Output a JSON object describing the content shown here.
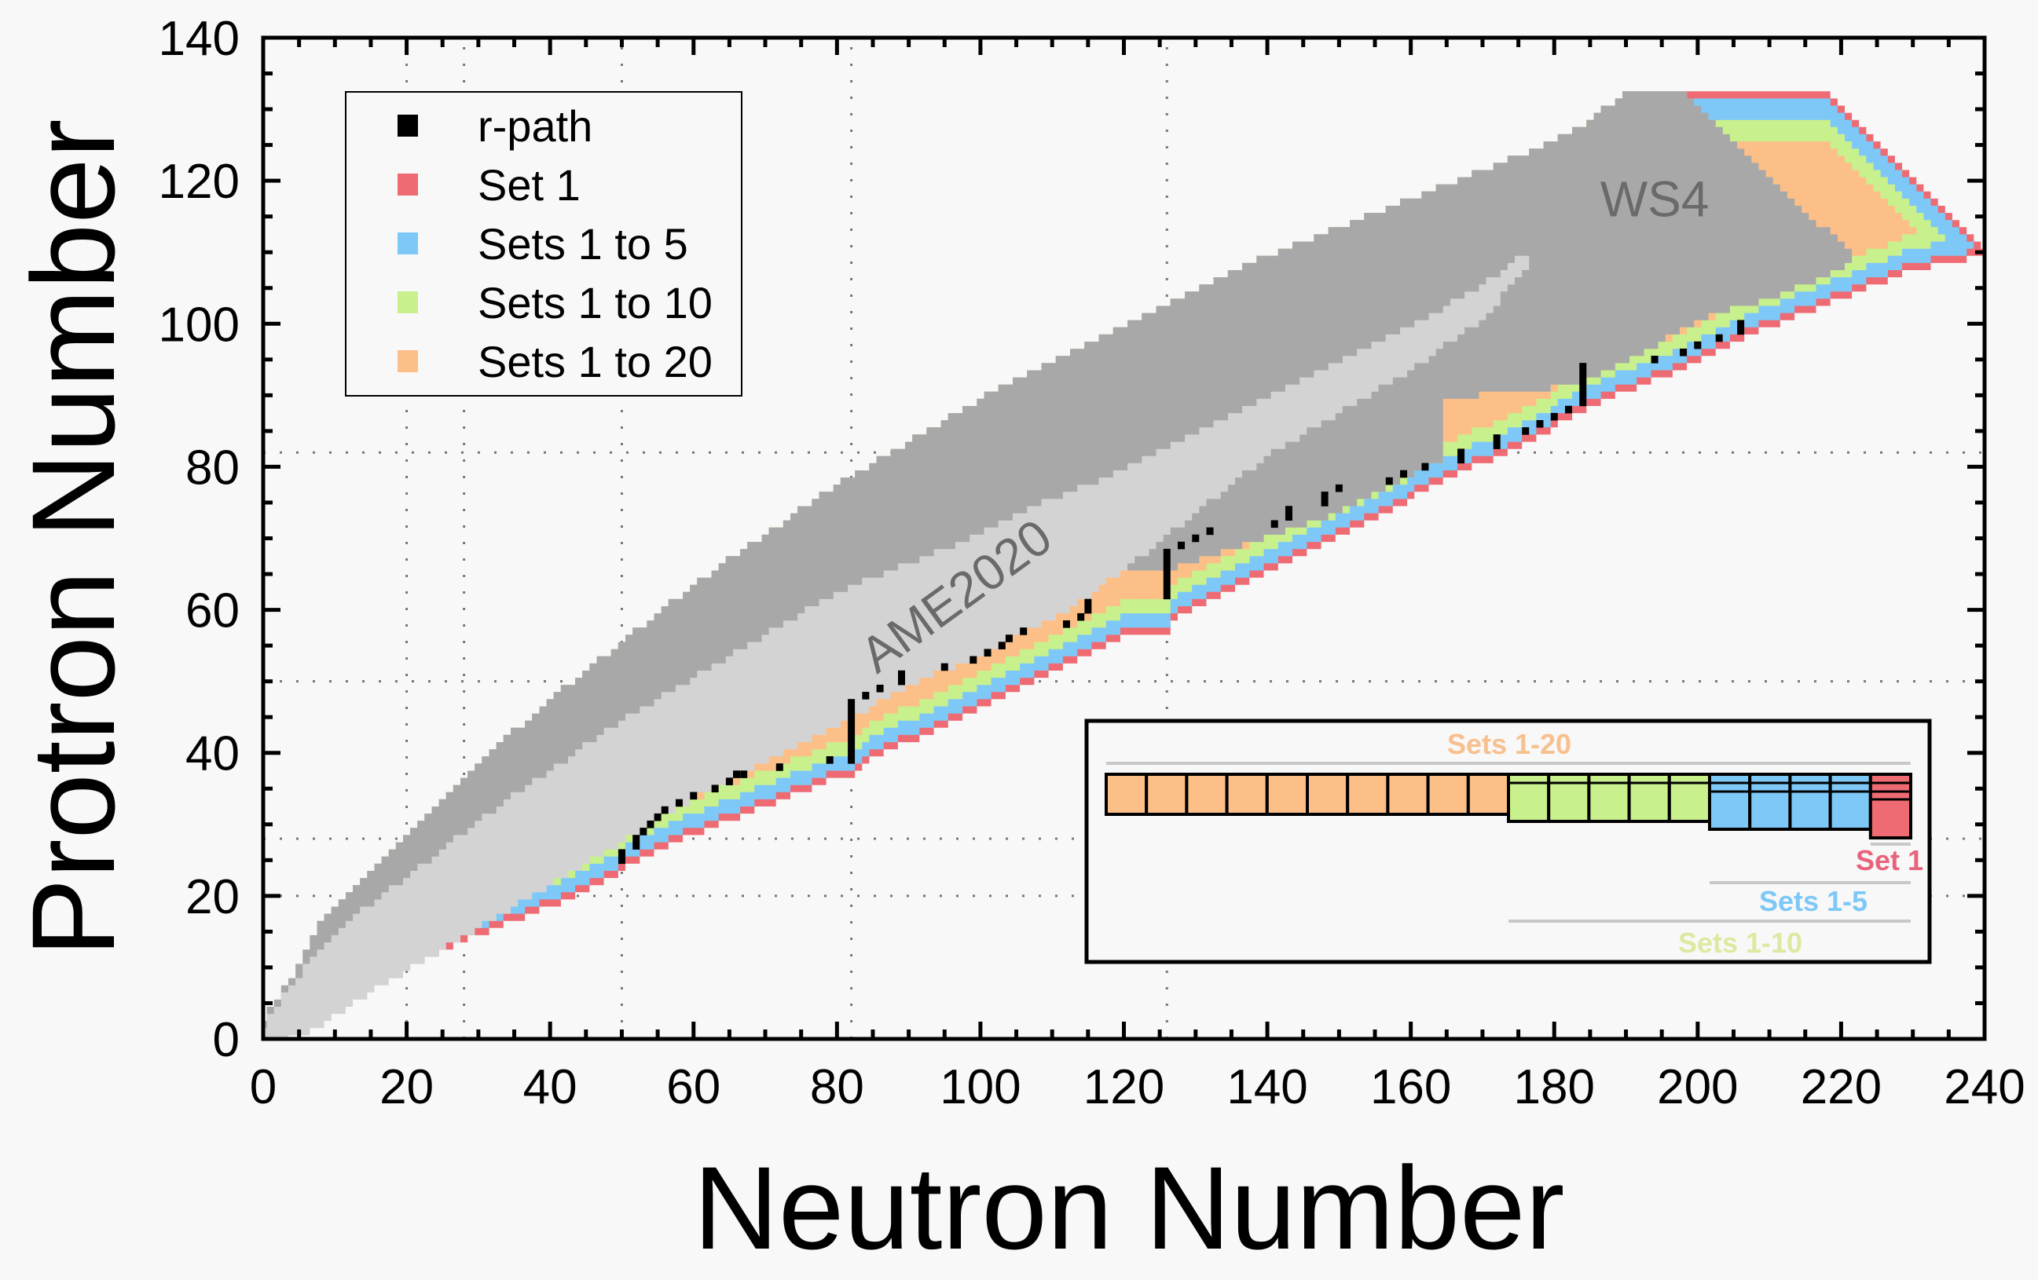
{
  "chart_data": {
    "type": "area",
    "title": "",
    "xlabel": "Neutron Number",
    "ylabel": "Protron Number",
    "xlim": [
      0,
      240
    ],
    "ylim": [
      0,
      140
    ],
    "xticks": [
      0,
      20,
      40,
      60,
      80,
      100,
      120,
      140,
      160,
      180,
      200,
      220,
      240
    ],
    "yticks": [
      0,
      20,
      40,
      60,
      80,
      100,
      120,
      140
    ],
    "x_minor_step": 5,
    "y_minor_step": 5,
    "magic_gridlines": {
      "neutron": [
        20,
        28,
        50,
        82,
        126
      ],
      "proton": [
        20,
        28,
        50,
        82
      ],
      "style": "dotted"
    },
    "colors": {
      "set1": "#ee6b73",
      "sets1to5": "#7ec8f8",
      "sets1to10": "#c8f08c",
      "sets1to20": "#fdbf88",
      "ws4": "#a8a8a8",
      "ame2020": "#d3d3d3",
      "rpath": "#000000"
    },
    "regions": {
      "ws4": {
        "label": "WS4",
        "upper_boundary": [
          [
            0,
            2
          ],
          [
            4,
            8
          ],
          [
            8,
            16
          ],
          [
            12,
            20
          ],
          [
            20,
            28
          ],
          [
            30,
            38
          ],
          [
            40,
            47
          ],
          [
            50,
            55
          ],
          [
            60,
            63
          ],
          [
            70,
            70
          ],
          [
            80,
            77
          ],
          [
            90,
            83
          ],
          [
            100,
            89
          ],
          [
            110,
            94
          ],
          [
            120,
            99
          ],
          [
            130,
            104
          ],
          [
            140,
            109
          ],
          [
            150,
            113
          ],
          [
            160,
            117
          ],
          [
            170,
            121
          ],
          [
            180,
            125
          ],
          [
            185,
            128
          ],
          [
            190,
            132
          ],
          [
            198,
            132
          ]
        ],
        "right_boundary": [
          [
            198,
            132
          ],
          [
            206,
            124
          ],
          [
            214,
            116
          ],
          [
            222,
            109
          ]
        ]
      },
      "ame2020": {
        "label": "AME2020",
        "upper_boundary": [
          [
            0,
            1
          ],
          [
            3,
            6
          ],
          [
            8,
            12
          ],
          [
            12,
            16
          ],
          [
            20,
            22
          ],
          [
            30,
            30
          ],
          [
            40,
            37
          ],
          [
            50,
            44
          ],
          [
            60,
            50
          ],
          [
            70,
            56
          ],
          [
            80,
            62
          ],
          [
            90,
            66
          ],
          [
            100,
            70
          ],
          [
            110,
            75
          ],
          [
            120,
            79
          ],
          [
            130,
            84
          ],
          [
            140,
            89
          ],
          [
            150,
            94
          ],
          [
            160,
            99
          ],
          [
            170,
            105
          ],
          [
            177,
            110
          ],
          [
            178,
            118
          ]
        ],
        "lower_boundary": [
          [
            178,
            118
          ],
          [
            176,
            108
          ],
          [
            170,
            101
          ],
          [
            160,
            94
          ],
          [
            150,
            88
          ],
          [
            140,
            82
          ],
          [
            130,
            74
          ],
          [
            120,
            66
          ],
          [
            112,
            60
          ],
          [
            100,
            54
          ],
          [
            90,
            50
          ],
          [
            80,
            44
          ],
          [
            70,
            39
          ],
          [
            60,
            34
          ],
          [
            50,
            28
          ],
          [
            40,
            22
          ],
          [
            30,
            16
          ],
          [
            20,
            10
          ],
          [
            12,
            5
          ],
          [
            6,
            1
          ],
          [
            2,
            0
          ],
          [
            0,
            0
          ]
        ]
      },
      "ws4_inner_lower_boundary": [
        [
          20,
          13
        ],
        [
          40,
          23
        ],
        [
          60,
          36
        ],
        [
          80,
          47
        ],
        [
          100,
          56
        ],
        [
          107,
          58
        ],
        [
          107,
          66
        ],
        [
          126,
          66
        ],
        [
          150,
          74
        ],
        [
          164,
          81
        ],
        [
          164,
          90
        ],
        [
          176,
          91
        ],
        [
          184,
          92
        ],
        [
          190,
          95
        ],
        [
          200,
          101
        ],
        [
          210,
          104
        ],
        [
          220,
          108
        ],
        [
          222,
          109
        ]
      ],
      "drip_lines": {
        "set1": [
          [
            8,
            7
          ],
          [
            14,
            8
          ],
          [
            20,
            10
          ],
          [
            30,
            15
          ],
          [
            40,
            19
          ],
          [
            45,
            21
          ],
          [
            50,
            24
          ],
          [
            55,
            27
          ],
          [
            60,
            29
          ],
          [
            65,
            31
          ],
          [
            70,
            33
          ],
          [
            75,
            35
          ],
          [
            80,
            37
          ],
          [
            82,
            37
          ],
          [
            84,
            39
          ],
          [
            90,
            42
          ],
          [
            95,
            44
          ],
          [
            100,
            47
          ],
          [
            105,
            49
          ],
          [
            110,
            52
          ],
          [
            115,
            54
          ],
          [
            120,
            57
          ],
          [
            126,
            57
          ],
          [
            128,
            60
          ],
          [
            135,
            63
          ],
          [
            140,
            66
          ],
          [
            145,
            68
          ],
          [
            150,
            71
          ],
          [
            155,
            73
          ],
          [
            160,
            76
          ],
          [
            165,
            79
          ],
          [
            170,
            81
          ],
          [
            175,
            83
          ],
          [
            180,
            86
          ],
          [
            184,
            88
          ],
          [
            186,
            89
          ],
          [
            190,
            91
          ],
          [
            195,
            93
          ],
          [
            200,
            95
          ],
          [
            205,
            98
          ],
          [
            210,
            100
          ],
          [
            215,
            102
          ],
          [
            220,
            104
          ],
          [
            225,
            106
          ],
          [
            230,
            108
          ],
          [
            240,
            110
          ]
        ],
        "sets1to5_offset": 1,
        "sets1to10_offset": 3,
        "sets1to20_offset": 5,
        "upper_sets_cap": [
          [
            198,
            132
          ],
          [
            218,
            132
          ],
          [
            240,
            110
          ]
        ]
      }
    },
    "r_path": [
      [
        50,
        25
      ],
      [
        50,
        26
      ],
      [
        52,
        27
      ],
      [
        52,
        28
      ],
      [
        53,
        29
      ],
      [
        54,
        30
      ],
      [
        55,
        31
      ],
      [
        56,
        32
      ],
      [
        58,
        33
      ],
      [
        60,
        34
      ],
      [
        63,
        35
      ],
      [
        65,
        36
      ],
      [
        66,
        37
      ],
      [
        67,
        37
      ],
      [
        72,
        38
      ],
      [
        79,
        39
      ],
      [
        82,
        39
      ],
      [
        82,
        40
      ],
      [
        82,
        41
      ],
      [
        82,
        42
      ],
      [
        82,
        43
      ],
      [
        82,
        44
      ],
      [
        82,
        45
      ],
      [
        82,
        46
      ],
      [
        82,
        47
      ],
      [
        84,
        48
      ],
      [
        86,
        49
      ],
      [
        89,
        50
      ],
      [
        89,
        51
      ],
      [
        95,
        52
      ],
      [
        99,
        53
      ],
      [
        101,
        54
      ],
      [
        103,
        55
      ],
      [
        104,
        56
      ],
      [
        106,
        57
      ],
      [
        112,
        58
      ],
      [
        114,
        59
      ],
      [
        115,
        60
      ],
      [
        115,
        61
      ],
      [
        126,
        62
      ],
      [
        126,
        63
      ],
      [
        126,
        64
      ],
      [
        126,
        65
      ],
      [
        126,
        66
      ],
      [
        126,
        67
      ],
      [
        126,
        68
      ],
      [
        128,
        69
      ],
      [
        130,
        70
      ],
      [
        132,
        71
      ],
      [
        141,
        72
      ],
      [
        143,
        73
      ],
      [
        143,
        74
      ],
      [
        148,
        75
      ],
      [
        148,
        76
      ],
      [
        150,
        77
      ],
      [
        157,
        78
      ],
      [
        159,
        79
      ],
      [
        162,
        80
      ],
      [
        167,
        81
      ],
      [
        167,
        82
      ],
      [
        172,
        83
      ],
      [
        172,
        84
      ],
      [
        176,
        85
      ],
      [
        178,
        86
      ],
      [
        180,
        87
      ],
      [
        182,
        88
      ],
      [
        184,
        89
      ],
      [
        184,
        90
      ],
      [
        184,
        91
      ],
      [
        184,
        92
      ],
      [
        184,
        93
      ],
      [
        184,
        94
      ],
      [
        194,
        95
      ],
      [
        198,
        96
      ],
      [
        200,
        97
      ],
      [
        203,
        98
      ],
      [
        206,
        99
      ],
      [
        206,
        100
      ]
    ],
    "legend": {
      "position": "top-left",
      "entries": [
        {
          "label": "r-path",
          "color_key": "rpath"
        },
        {
          "label": "Set  1",
          "color_key": "set1"
        },
        {
          "label": "Sets 1 to 5",
          "color_key": "sets1to5"
        },
        {
          "label": "Sets 1 to 10",
          "color_key": "sets1to10"
        },
        {
          "label": "Sets 1 to 20",
          "color_key": "sets1to20"
        }
      ]
    },
    "inset": {
      "position": "bottom-right",
      "total_sets": 20,
      "groups": [
        {
          "label": "Sets 1-20",
          "from": 1,
          "to": 20,
          "color_key": "sets1to20"
        },
        {
          "label": "Sets 1-10",
          "from": 1,
          "to": 10,
          "color_key": "sets1to10"
        },
        {
          "label": "Sets 1-5",
          "from": 1,
          "to": 5,
          "color_key": "sets1to5"
        },
        {
          "label": "Set 1",
          "from": 1,
          "to": 1,
          "color_key": "set1"
        }
      ]
    }
  }
}
